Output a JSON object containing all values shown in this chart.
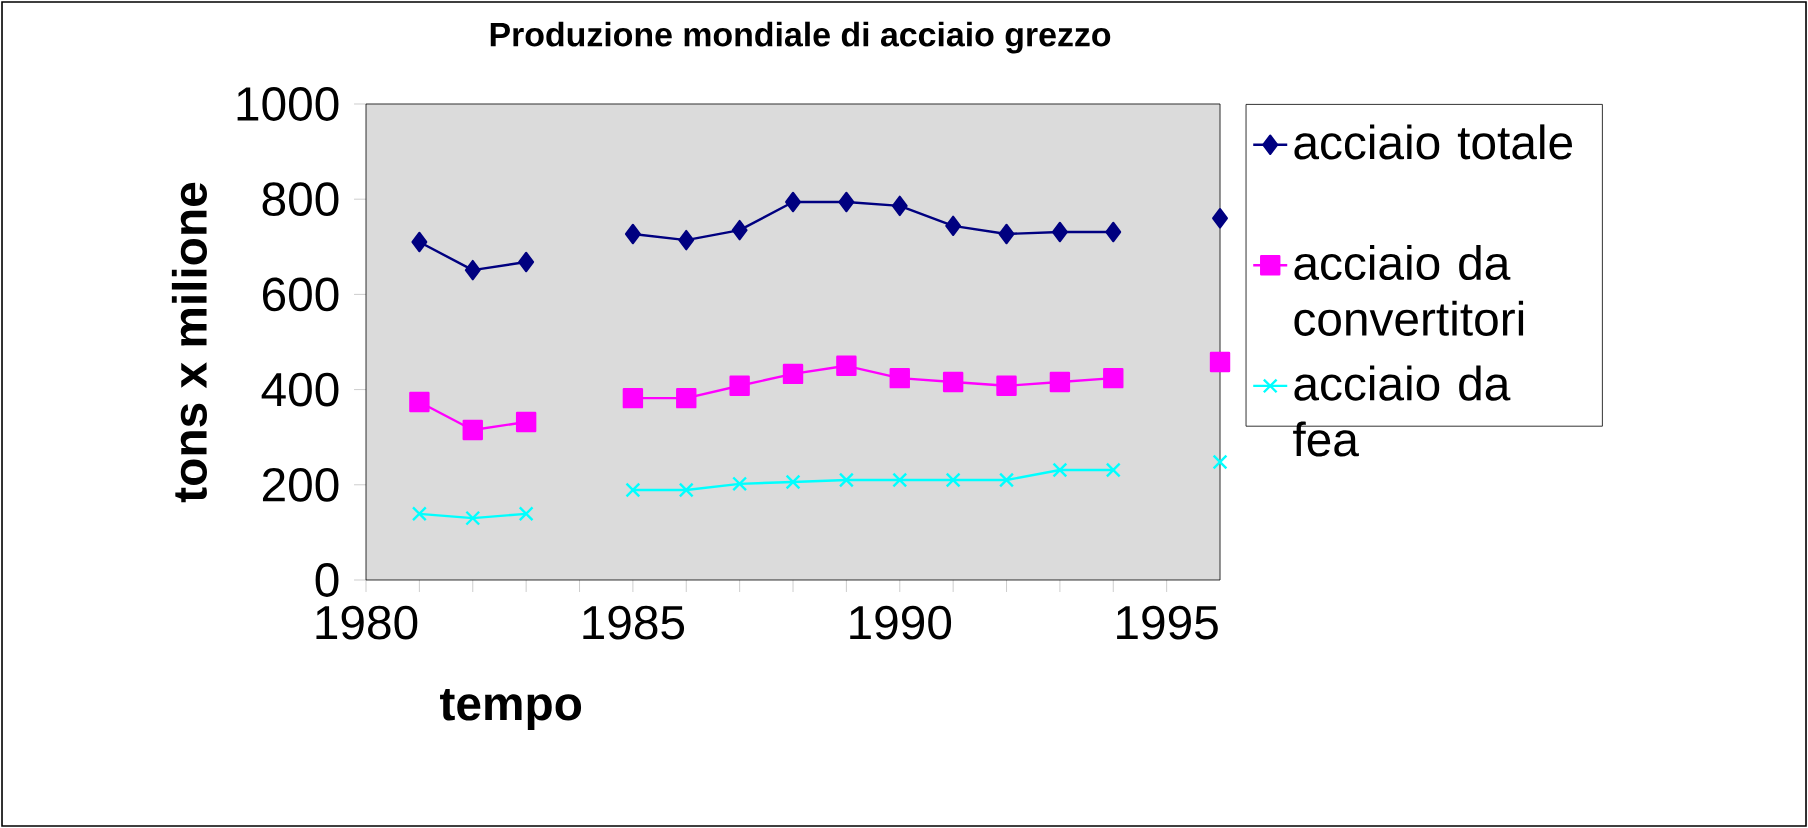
{
  "chart_data": {
    "type": "line",
    "title": "Produzione mondiale di acciaio grezzo",
    "xlabel": "tempo",
    "ylabel": "tons x milione",
    "x": [
      1981,
      1982,
      1983,
      1984,
      1985,
      1986,
      1987,
      1988,
      1989,
      1990,
      1991,
      1992,
      1993,
      1994,
      1995,
      1996
    ],
    "series": [
      {
        "name": "acciaio totale",
        "color": "#000080",
        "marker": "diamond",
        "values": [
          710,
          651,
          668,
          null,
          727,
          714,
          735,
          794,
          794,
          786,
          744,
          727,
          731,
          731,
          null,
          760
        ]
      },
      {
        "name": "acciaio da convertitori",
        "color": "#ff00ff",
        "marker": "square",
        "values": [
          374,
          315,
          332,
          null,
          382,
          382,
          408,
          433,
          450,
          424,
          416,
          408,
          416,
          424,
          null,
          458
        ]
      },
      {
        "name": "acciaio da fea",
        "color": "#00ffff",
        "marker": "cross",
        "values": [
          139,
          130,
          139,
          null,
          189,
          189,
          202,
          206,
          210,
          210,
          210,
          210,
          231,
          231,
          null,
          248
        ]
      }
    ],
    "xlim": [
      1980,
      1996
    ],
    "xticks": [
      1980,
      1985,
      1990,
      1995
    ],
    "ylim": [
      0,
      1000
    ],
    "yticks": [
      0,
      200,
      400,
      600,
      800,
      1000
    ],
    "grid": false,
    "legend": "right"
  }
}
